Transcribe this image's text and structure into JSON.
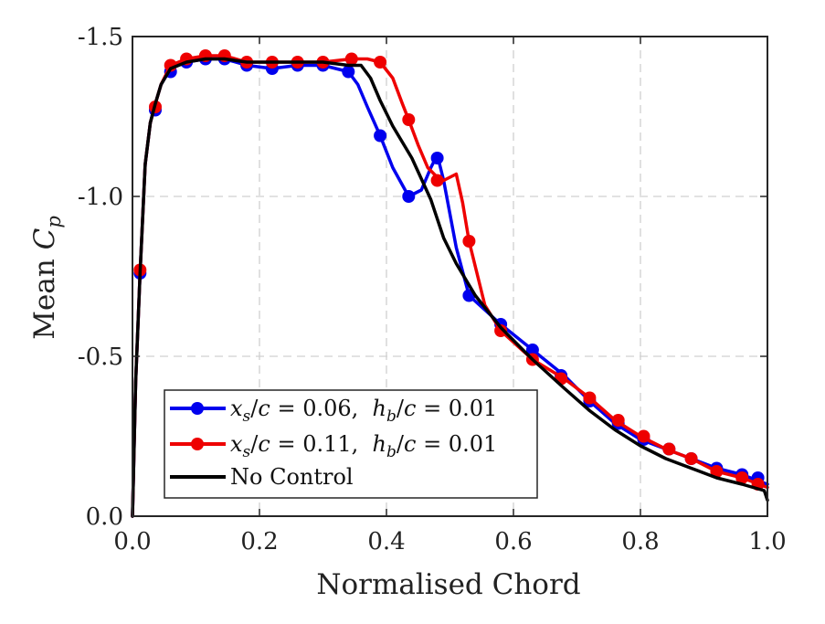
{
  "chart_data": {
    "type": "line",
    "title": "",
    "xlabel": "Normalised Chord",
    "ylabel": {
      "prefix": "Mean ",
      "symbol": "C",
      "subscript": "p"
    },
    "xlim": [
      0.0,
      1.0
    ],
    "ylim": [
      0.0,
      -1.5
    ],
    "y_axis_reversed": true,
    "grid": true,
    "xticks": [
      "0.0",
      "0.2",
      "0.4",
      "0.6",
      "0.8",
      "1.0"
    ],
    "yticks": [
      "0.0",
      "-0.5",
      "-1.0",
      "-1.5"
    ],
    "legend_position": "bottom-left",
    "series": [
      {
        "name": "x_s/c = 0.06,  h_b/c = 0.01",
        "legend": {
          "lhs1": "x",
          "sub1": "s",
          "mid1": "/",
          "c1": "c",
          "eq1": " = 0.06,  ",
          "lhs2": "h",
          "sub2": "b",
          "mid2": "/",
          "c2": "c",
          "eq2": " = 0.01"
        },
        "color": "#0000ee",
        "marker": "circle",
        "x": [
          0.0,
          0.005,
          0.012,
          0.02,
          0.028,
          0.036,
          0.045,
          0.06,
          0.085,
          0.115,
          0.145,
          0.18,
          0.22,
          0.26,
          0.3,
          0.34,
          0.355,
          0.37,
          0.39,
          0.41,
          0.435,
          0.455,
          0.47,
          0.48,
          0.49,
          0.51,
          0.53,
          0.58,
          0.63,
          0.68,
          0.72,
          0.76,
          0.8,
          0.84,
          0.88,
          0.92,
          0.96,
          1.0
        ],
        "y": [
          0.0,
          -0.42,
          -0.76,
          -1.1,
          -1.23,
          -1.29,
          -1.35,
          -1.4,
          -1.42,
          -1.43,
          -1.43,
          -1.41,
          -1.4,
          -1.41,
          -1.41,
          -1.39,
          -1.35,
          -1.28,
          -1.19,
          -1.09,
          -1.0,
          -1.02,
          -1.09,
          -1.13,
          -1.05,
          -0.84,
          -0.69,
          -0.6,
          -0.52,
          -0.44,
          -0.36,
          -0.29,
          -0.24,
          -0.21,
          -0.18,
          -0.15,
          -0.13,
          -0.1
        ],
        "markers_x": [
          0.012,
          0.036,
          0.06,
          0.085,
          0.115,
          0.145,
          0.18,
          0.22,
          0.26,
          0.3,
          0.34,
          0.39,
          0.435,
          0.48,
          0.53,
          0.58,
          0.63,
          0.675,
          0.72,
          0.765,
          0.805,
          0.845,
          0.88,
          0.92,
          0.96,
          0.985
        ],
        "markers_y": [
          -0.76,
          -1.27,
          -1.39,
          -1.42,
          -1.43,
          -1.43,
          -1.41,
          -1.4,
          -1.41,
          -1.41,
          -1.39,
          -1.19,
          -1.0,
          -1.12,
          -0.69,
          -0.6,
          -0.52,
          -0.44,
          -0.36,
          -0.29,
          -0.24,
          -0.21,
          -0.18,
          -0.15,
          -0.13,
          -0.12
        ]
      },
      {
        "name": "x_s/c = 0.11,  h_b/c = 0.01",
        "legend": {
          "lhs1": "x",
          "sub1": "s",
          "mid1": "/",
          "c1": "c",
          "eq1": " = 0.11,  ",
          "lhs2": "h",
          "sub2": "b",
          "mid2": "/",
          "c2": "c",
          "eq2": " = 0.01"
        },
        "color": "#ee0000",
        "marker": "circle",
        "x": [
          0.0,
          0.005,
          0.012,
          0.02,
          0.028,
          0.036,
          0.045,
          0.06,
          0.085,
          0.115,
          0.145,
          0.18,
          0.22,
          0.26,
          0.3,
          0.345,
          0.37,
          0.39,
          0.41,
          0.425,
          0.435,
          0.45,
          0.465,
          0.48,
          0.49,
          0.5,
          0.51,
          0.52,
          0.53,
          0.555,
          0.58,
          0.63,
          0.68,
          0.72,
          0.76,
          0.8,
          0.84,
          0.88,
          0.92,
          0.96,
          1.0
        ],
        "y": [
          0.0,
          -0.42,
          -0.76,
          -1.1,
          -1.23,
          -1.29,
          -1.35,
          -1.41,
          -1.43,
          -1.44,
          -1.44,
          -1.42,
          -1.42,
          -1.42,
          -1.42,
          -1.43,
          -1.43,
          -1.42,
          -1.37,
          -1.29,
          -1.24,
          -1.16,
          -1.09,
          -1.06,
          -1.05,
          -1.06,
          -1.07,
          -0.98,
          -0.86,
          -0.66,
          -0.58,
          -0.49,
          -0.43,
          -0.37,
          -0.3,
          -0.25,
          -0.21,
          -0.18,
          -0.14,
          -0.12,
          -0.09
        ],
        "markers_x": [
          0.012,
          0.036,
          0.06,
          0.085,
          0.115,
          0.145,
          0.18,
          0.22,
          0.26,
          0.3,
          0.345,
          0.39,
          0.435,
          0.48,
          0.53,
          0.58,
          0.63,
          0.675,
          0.72,
          0.765,
          0.805,
          0.845,
          0.88,
          0.92,
          0.96,
          0.985
        ],
        "markers_y": [
          -0.77,
          -1.28,
          -1.41,
          -1.43,
          -1.44,
          -1.44,
          -1.42,
          -1.42,
          -1.42,
          -1.42,
          -1.43,
          -1.42,
          -1.24,
          -1.05,
          -0.86,
          -0.58,
          -0.49,
          -0.43,
          -0.37,
          -0.3,
          -0.25,
          -0.21,
          -0.18,
          -0.14,
          -0.12,
          -0.1
        ]
      },
      {
        "name": "No Control",
        "legend": {
          "text": "No Control"
        },
        "color": "#000000",
        "marker": "none",
        "x": [
          0.0,
          0.005,
          0.012,
          0.02,
          0.028,
          0.036,
          0.045,
          0.06,
          0.085,
          0.115,
          0.145,
          0.18,
          0.22,
          0.26,
          0.3,
          0.34,
          0.36,
          0.375,
          0.39,
          0.41,
          0.44,
          0.47,
          0.49,
          0.51,
          0.54,
          0.58,
          0.63,
          0.68,
          0.72,
          0.76,
          0.8,
          0.84,
          0.88,
          0.92,
          0.96,
          0.995,
          1.0
        ],
        "y": [
          0.0,
          -0.42,
          -0.76,
          -1.1,
          -1.23,
          -1.29,
          -1.35,
          -1.4,
          -1.42,
          -1.43,
          -1.43,
          -1.42,
          -1.42,
          -1.42,
          -1.42,
          -1.41,
          -1.41,
          -1.37,
          -1.3,
          -1.22,
          -1.12,
          -0.99,
          -0.87,
          -0.79,
          -0.69,
          -0.59,
          -0.49,
          -0.4,
          -0.33,
          -0.27,
          -0.22,
          -0.18,
          -0.15,
          -0.12,
          -0.1,
          -0.08,
          -0.05
        ]
      }
    ]
  }
}
